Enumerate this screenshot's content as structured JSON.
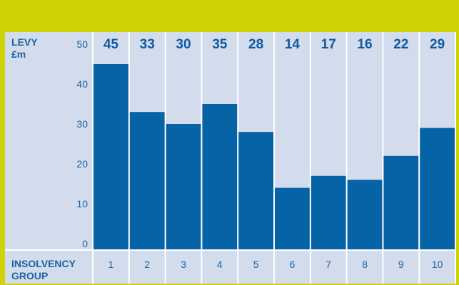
{
  "colors": {
    "frame": "#cfd204",
    "panel": "#d2dcec",
    "bar": "#0563a6",
    "text": "#1a63a6",
    "divider": "#ffffff"
  },
  "chart_data": {
    "type": "bar",
    "categories": [
      "1",
      "2",
      "3",
      "4",
      "5",
      "6",
      "7",
      "8",
      "9",
      "10"
    ],
    "values": [
      45,
      33,
      30,
      35,
      28,
      14,
      17,
      16,
      22,
      29
    ],
    "ylabel_line1": "LEVY",
    "ylabel_line2": "£m",
    "xlabel_line1": "INSOLVENCY",
    "xlabel_line2": "GROUP",
    "yticks": [
      "50",
      "40",
      "30",
      "20",
      "10",
      "0"
    ],
    "ylim": [
      0,
      50
    ],
    "grid": false,
    "legend": "none"
  }
}
